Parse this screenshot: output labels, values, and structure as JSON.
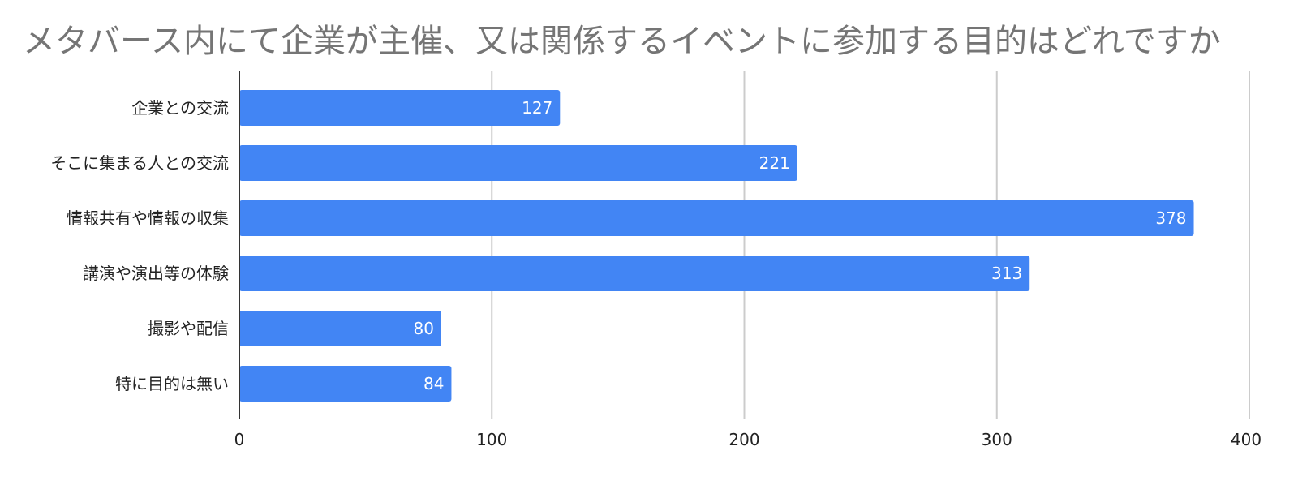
{
  "chart_data": {
    "type": "bar",
    "orientation": "horizontal",
    "title": "メタバース内にて企業が主催、又は関係するイベントに参加する目的はどれですか",
    "xlabel": "",
    "ylabel": "",
    "categories": [
      "企業との交流",
      "そこに集まる人との交流",
      "情報共有や情報の収集",
      "講演や演出等の体験",
      "撮影や配信",
      "特に目的は無い"
    ],
    "values": [
      127,
      221,
      378,
      313,
      80,
      84
    ],
    "xlim": [
      0,
      400
    ],
    "x_ticks": [
      "0",
      "100",
      "200",
      "300",
      "400"
    ],
    "grid": true,
    "legend": "none",
    "data_labels": "inside-end",
    "colors": {
      "bar": "#4285f4",
      "bar_label": "#ffffff",
      "grid": "#cccccc",
      "axis": "#333333",
      "title": "#757575",
      "text": "#222222"
    }
  }
}
